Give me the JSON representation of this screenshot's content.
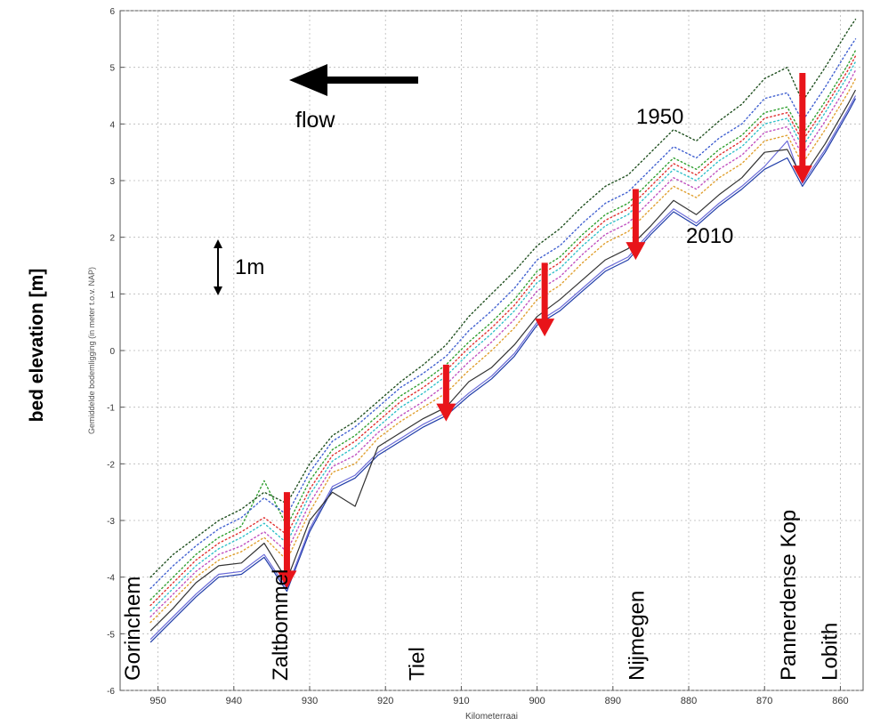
{
  "outer_ylabel": "bed elevation [m]",
  "chart_data": {
    "type": "line",
    "xlabel": "Kilometerraai",
    "ylabel": "Gemiddelde bodemligging (in meter t.o.v. NAP)",
    "xlim": [
      955,
      857
    ],
    "ylim": [
      -6,
      6
    ],
    "x_reversed": true,
    "xticks": [
      950,
      940,
      930,
      920,
      910,
      900,
      890,
      880,
      870,
      860
    ],
    "yticks": [
      -6,
      -5,
      -4,
      -3,
      -2,
      -1,
      0,
      1,
      2,
      3,
      4,
      5,
      6
    ],
    "grid": true,
    "x": [
      951,
      948,
      945,
      942,
      939,
      936,
      933,
      930,
      927,
      924,
      921,
      918,
      915,
      912,
      909,
      906,
      903,
      900,
      897,
      894,
      891,
      888,
      885,
      882,
      879,
      876,
      873,
      870,
      867,
      865,
      862,
      859,
      858
    ],
    "series": [
      {
        "color": "#1f3ca8",
        "dash": "solid",
        "values": [
          -5.15,
          -4.75,
          -4.35,
          -4.0,
          -3.95,
          -3.65,
          -4.25,
          -3.2,
          -2.45,
          -2.25,
          -1.85,
          -1.6,
          -1.35,
          -1.15,
          -0.8,
          -0.5,
          -0.1,
          0.45,
          0.7,
          1.05,
          1.4,
          1.6,
          2.05,
          2.45,
          2.2,
          2.55,
          2.85,
          3.2,
          3.4,
          2.9,
          3.5,
          4.2,
          4.45
        ]
      },
      {
        "color": "#6b6bd8",
        "dash": "solid",
        "values": [
          -5.1,
          -4.7,
          -4.3,
          -3.95,
          -3.9,
          -3.6,
          -4.2,
          -3.15,
          -2.4,
          -2.2,
          -1.8,
          -1.55,
          -1.3,
          -1.1,
          -0.75,
          -0.45,
          -0.05,
          0.5,
          0.75,
          1.1,
          1.45,
          1.65,
          2.1,
          2.5,
          2.25,
          2.6,
          2.9,
          3.25,
          3.7,
          2.95,
          3.55,
          4.25,
          4.5
        ]
      },
      {
        "color": "#333333",
        "dash": "solid",
        "values": [
          -4.95,
          -4.55,
          -4.1,
          -3.8,
          -3.75,
          -3.4,
          -4.05,
          -3.0,
          -2.5,
          -2.75,
          -1.7,
          -1.45,
          -1.2,
          -1.0,
          -0.55,
          -0.3,
          0.1,
          0.6,
          0.9,
          1.25,
          1.6,
          1.8,
          2.2,
          2.65,
          2.4,
          2.75,
          3.05,
          3.5,
          3.55,
          3.05,
          3.65,
          4.35,
          4.6
        ]
      },
      {
        "color": "#e0a030",
        "dash": "dotted",
        "values": [
          -4.8,
          -4.4,
          -4.0,
          -3.7,
          -3.55,
          -3.3,
          -3.7,
          -2.85,
          -2.15,
          -2.0,
          -1.55,
          -1.25,
          -1.0,
          -0.75,
          -0.35,
          0.0,
          0.4,
          0.9,
          1.15,
          1.55,
          1.9,
          2.1,
          2.5,
          2.9,
          2.7,
          3.05,
          3.3,
          3.7,
          3.8,
          3.3,
          3.9,
          4.55,
          4.8
        ]
      },
      {
        "color": "#c050c0",
        "dash": "dotted",
        "values": [
          -4.7,
          -4.3,
          -3.9,
          -3.6,
          -3.45,
          -3.2,
          -3.55,
          -2.7,
          -2.05,
          -1.85,
          -1.45,
          -1.15,
          -0.9,
          -0.6,
          -0.2,
          0.15,
          0.55,
          1.05,
          1.3,
          1.7,
          2.05,
          2.25,
          2.65,
          3.05,
          2.85,
          3.2,
          3.45,
          3.85,
          3.95,
          3.45,
          4.05,
          4.7,
          4.95
        ]
      },
      {
        "color": "#30c0c8",
        "dash": "dotted",
        "values": [
          -4.6,
          -4.2,
          -3.8,
          -3.5,
          -3.3,
          -3.05,
          -3.4,
          -2.55,
          -1.95,
          -1.7,
          -1.35,
          -1.0,
          -0.75,
          -0.45,
          -0.05,
          0.3,
          0.7,
          1.2,
          1.45,
          1.85,
          2.2,
          2.4,
          2.8,
          3.2,
          3.0,
          3.35,
          3.6,
          4.0,
          4.1,
          3.6,
          4.2,
          4.85,
          5.1
        ]
      },
      {
        "color": "#e03030",
        "dash": "dotted",
        "values": [
          -4.5,
          -4.1,
          -3.7,
          -3.4,
          -3.2,
          -2.95,
          -3.25,
          -2.45,
          -1.85,
          -1.6,
          -1.25,
          -0.9,
          -0.65,
          -0.35,
          0.05,
          0.4,
          0.8,
          1.3,
          1.55,
          1.95,
          2.3,
          2.5,
          2.9,
          3.3,
          3.1,
          3.45,
          3.7,
          4.1,
          4.2,
          3.7,
          4.3,
          4.95,
          5.2
        ]
      },
      {
        "color": "#30a030",
        "dash": "dotted",
        "values": [
          -4.4,
          -4.0,
          -3.6,
          -3.3,
          -3.1,
          -2.3,
          -3.1,
          -2.3,
          -1.75,
          -1.5,
          -1.15,
          -0.8,
          -0.55,
          -0.25,
          0.15,
          0.5,
          0.9,
          1.4,
          1.65,
          2.05,
          2.4,
          2.6,
          3.0,
          3.4,
          3.2,
          3.55,
          3.8,
          4.2,
          4.3,
          3.8,
          4.4,
          5.05,
          5.3
        ]
      },
      {
        "color": "#4060d0",
        "dash": "dotted",
        "values": [
          -4.2,
          -3.8,
          -3.45,
          -3.15,
          -2.95,
          -2.6,
          -2.9,
          -2.15,
          -1.6,
          -1.35,
          -1.0,
          -0.65,
          -0.4,
          -0.1,
          0.35,
          0.7,
          1.1,
          1.6,
          1.85,
          2.25,
          2.6,
          2.8,
          3.2,
          3.6,
          3.4,
          3.75,
          4.0,
          4.45,
          4.55,
          4.05,
          4.65,
          5.3,
          5.5
        ]
      },
      {
        "color": "#205020",
        "dash": "dotted",
        "values": [
          -4.0,
          -3.6,
          -3.3,
          -3.0,
          -2.8,
          -2.5,
          -2.7,
          -2.0,
          -1.5,
          -1.25,
          -0.9,
          -0.55,
          -0.25,
          0.1,
          0.6,
          1.0,
          1.4,
          1.85,
          2.15,
          2.55,
          2.9,
          3.1,
          3.5,
          3.9,
          3.7,
          4.05,
          4.35,
          4.8,
          5.0,
          4.4,
          5.0,
          5.65,
          5.85
        ]
      }
    ],
    "annotations": {
      "flow_label": "flow",
      "year_top": "1950",
      "year_bottom": "2010",
      "scale_label": "1m"
    },
    "arrows_km": [
      {
        "km": 933,
        "from": -2.5,
        "to": -4.2
      },
      {
        "km": 912,
        "from": -0.25,
        "to": -1.25
      },
      {
        "km": 899,
        "from": 1.55,
        "to": 0.25
      },
      {
        "km": 887,
        "from": 2.85,
        "to": 1.6
      },
      {
        "km": 865,
        "from": 4.9,
        "to": 2.95
      }
    ],
    "places": [
      {
        "name": "Gorinchem",
        "km": 953.5
      },
      {
        "name": "Zaltbommel",
        "km": 934
      },
      {
        "name": "Tiel",
        "km": 916
      },
      {
        "name": "Nijmegen",
        "km": 887
      },
      {
        "name": "Pannerdense Kop",
        "km": 867
      },
      {
        "name": "Lobith",
        "km": 861.5
      }
    ]
  }
}
